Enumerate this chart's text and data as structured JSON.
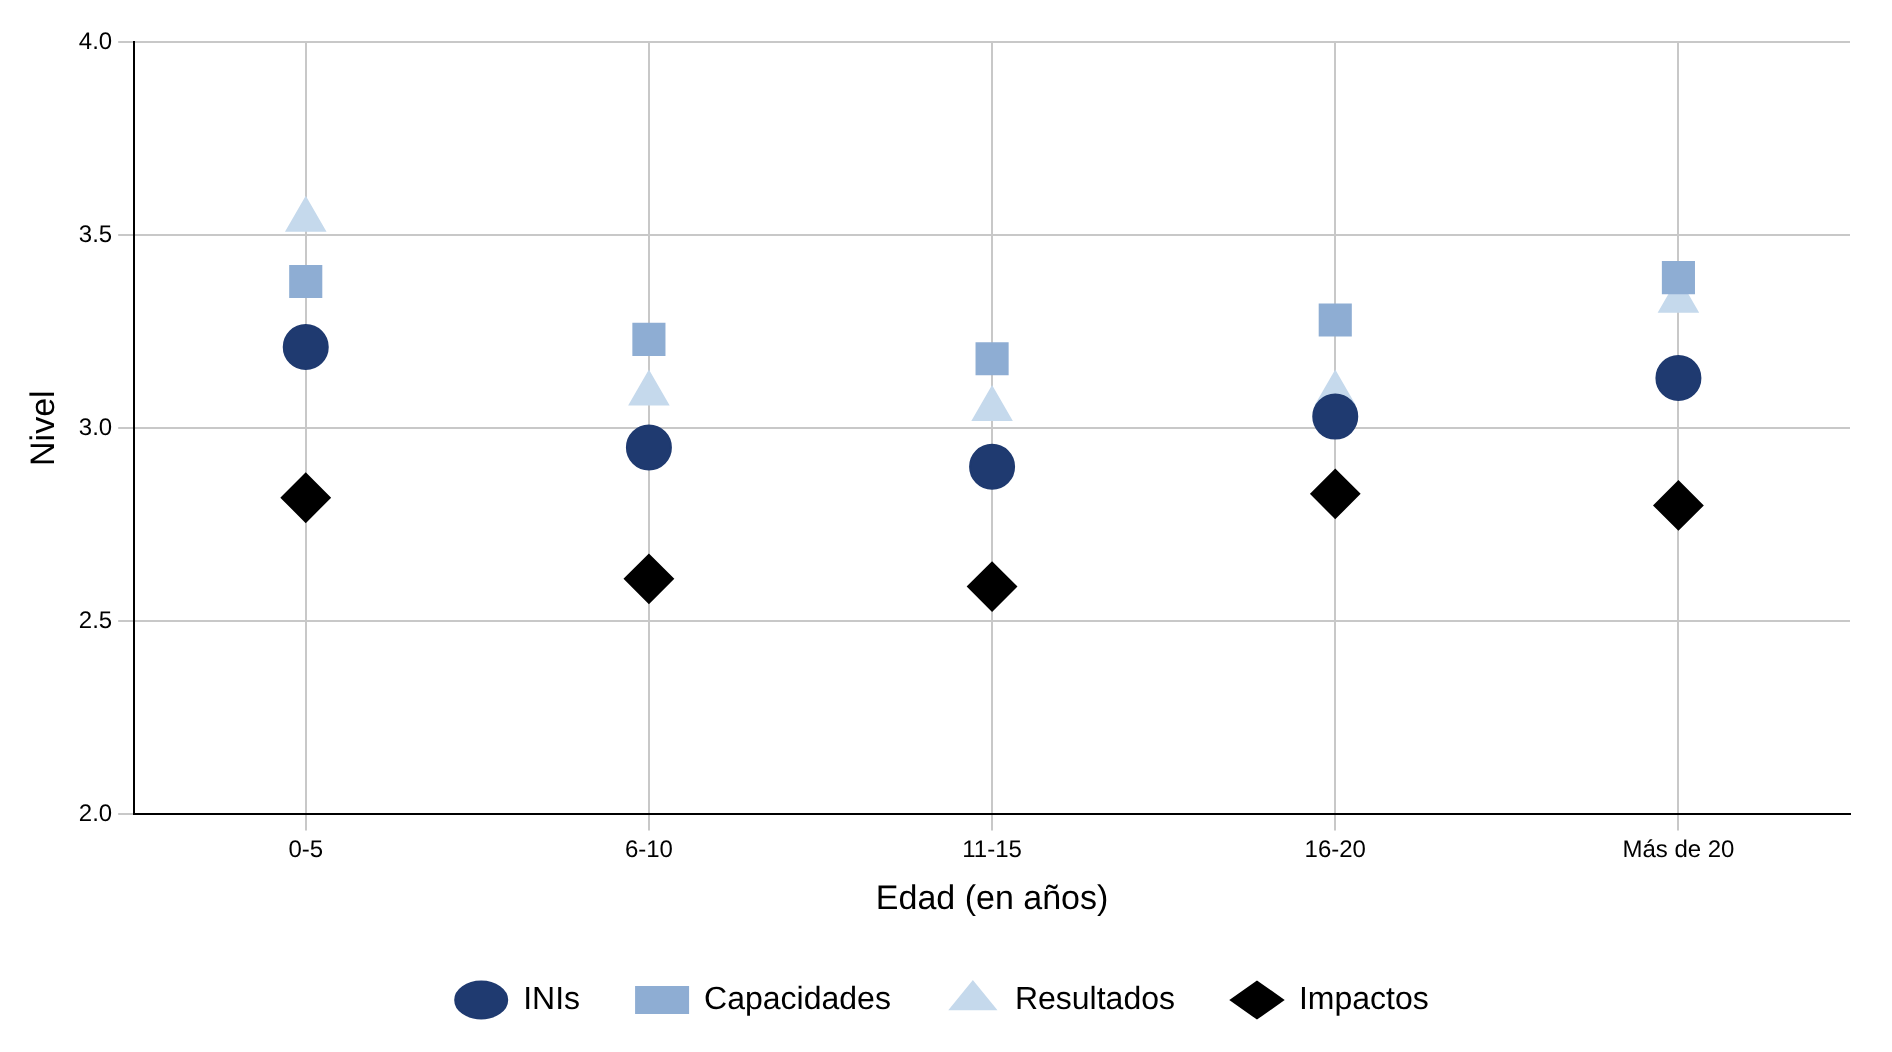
{
  "chart_data": {
    "type": "scatter",
    "xlabel": "Edad (en años)",
    "ylabel": "Nivel",
    "categories": [
      "0-5",
      "6-10",
      "11-15",
      "16-20",
      "Más de 20"
    ],
    "ylim": [
      2.0,
      4.0
    ],
    "yticks": [
      {
        "value": 2.0,
        "label": "2.0"
      },
      {
        "value": 2.5,
        "label": "2.5"
      },
      {
        "value": 3.0,
        "label": "3.0"
      },
      {
        "value": 3.5,
        "label": "3.5"
      },
      {
        "value": 4.0,
        "label": "4.0"
      }
    ],
    "grid": true,
    "legend": "bottom",
    "series": [
      {
        "name": "INIs",
        "color": "#1f3a70",
        "marker": "circle",
        "values": [
          3.21,
          2.95,
          2.9,
          3.03,
          3.13
        ]
      },
      {
        "name": "Capacidades",
        "color": "#8eadd3",
        "marker": "square",
        "values": [
          3.38,
          3.23,
          3.18,
          3.28,
          3.39
        ]
      },
      {
        "name": "Resultados",
        "color": "#c5d9ec",
        "marker": "triangle",
        "values": [
          3.54,
          3.09,
          3.05,
          3.09,
          3.33
        ]
      },
      {
        "name": "Impactos",
        "color": "#000000",
        "marker": "diamond",
        "values": [
          2.82,
          2.61,
          2.59,
          2.83,
          2.8
        ]
      }
    ]
  }
}
